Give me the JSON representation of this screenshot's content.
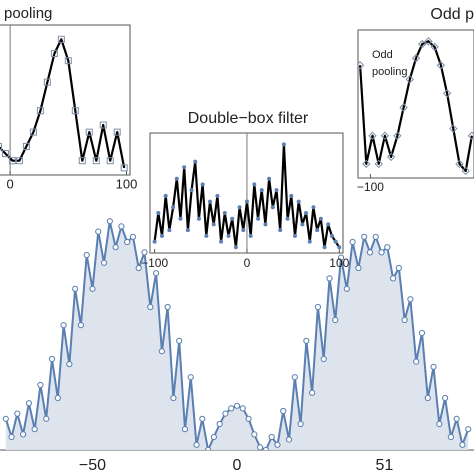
{
  "chart_data": [
    {
      "type": "area",
      "color": "#5a7fb0",
      "fill_color": "#dde4ee",
      "marker": "circle",
      "xlim": [
        -82,
        82
      ],
      "ylim": [
        0,
        1
      ],
      "xticks": [
        {
          "value": -50,
          "label": "−50"
        },
        0,
        51
      ],
      "x": [
        -80,
        -78,
        -76,
        -74,
        -72,
        -70,
        -68,
        -66,
        -64,
        -62,
        -60,
        -58,
        -56,
        -54,
        -52,
        -50,
        -48,
        -46,
        -44,
        -42,
        -40,
        -38,
        -36,
        -34,
        -32,
        -30,
        -28,
        -26,
        -24,
        -22,
        -20,
        -18,
        -16,
        -14,
        -12,
        -10,
        -8,
        -6,
        -4,
        -2,
        0,
        2,
        4,
        6,
        8,
        10,
        12,
        14,
        16,
        18,
        20,
        22,
        24,
        26,
        28,
        30,
        32,
        34,
        36,
        38,
        40,
        42,
        44,
        46,
        48,
        50,
        52,
        54,
        56,
        58,
        60,
        62,
        64,
        66,
        68,
        70,
        72,
        74,
        76,
        78,
        80
      ],
      "values": [
        0.12,
        0.05,
        0.14,
        0.06,
        0.18,
        0.08,
        0.25,
        0.12,
        0.35,
        0.2,
        0.48,
        0.33,
        0.62,
        0.48,
        0.75,
        0.62,
        0.84,
        0.72,
        0.88,
        0.78,
        0.86,
        0.8,
        0.82,
        0.7,
        0.76,
        0.55,
        0.68,
        0.38,
        0.55,
        0.2,
        0.42,
        0.08,
        0.28,
        0.02,
        0.12,
        0.0,
        0.05,
        0.1,
        0.14,
        0.16,
        0.17,
        0.16,
        0.12,
        0.06,
        0.01,
        0.0,
        0.05,
        0.02,
        0.15,
        0.04,
        0.28,
        0.1,
        0.42,
        0.22,
        0.55,
        0.35,
        0.66,
        0.5,
        0.74,
        0.62,
        0.8,
        0.7,
        0.82,
        0.76,
        0.82,
        0.76,
        0.78,
        0.66,
        0.7,
        0.5,
        0.58,
        0.34,
        0.45,
        0.2,
        0.32,
        0.1,
        0.2,
        0.05,
        0.12,
        0.02,
        0.08
      ]
    },
    {
      "type": "line",
      "title": "pooling",
      "color": "#000000",
      "marker": "square",
      "marker_color": "#7d8fa8",
      "xlim": [
        -13,
        103
      ],
      "ylim": [
        0,
        1.05
      ],
      "xticks": [
        0,
        100
      ],
      "x": [
        -10,
        -4,
        2,
        8,
        14,
        20,
        26,
        32,
        38,
        44,
        50,
        56,
        62,
        68,
        74,
        80,
        86,
        92,
        98
      ],
      "values": [
        0.2,
        0.15,
        0.1,
        0.1,
        0.2,
        0.3,
        0.45,
        0.65,
        0.85,
        0.95,
        0.8,
        0.45,
        0.1,
        0.3,
        0.1,
        0.35,
        0.1,
        0.3,
        0.05
      ]
    },
    {
      "type": "line",
      "title": "Double−box filter",
      "color": "#000000",
      "marker": "dot",
      "marker_color": "#5a7fb0",
      "xlim": [
        -105,
        104
      ],
      "ylim": [
        0,
        1.05
      ],
      "xticks": [
        {
          "value": -100,
          "label": "−100"
        },
        0,
        100
      ],
      "x": [
        -100,
        -96,
        -92,
        -88,
        -84,
        -80,
        -76,
        -72,
        -68,
        -64,
        -60,
        -56,
        -52,
        -48,
        -44,
        -40,
        -36,
        -32,
        -28,
        -24,
        -20,
        -16,
        -12,
        -8,
        -4,
        0,
        4,
        8,
        12,
        16,
        20,
        24,
        28,
        32,
        36,
        40,
        44,
        48,
        52,
        56,
        60,
        64,
        68,
        72,
        76,
        80,
        84,
        88,
        92,
        96,
        100
      ],
      "values": [
        0.1,
        0.35,
        0.15,
        0.5,
        0.2,
        0.4,
        0.65,
        0.3,
        0.75,
        0.2,
        0.55,
        0.8,
        0.3,
        0.6,
        0.15,
        0.45,
        0.25,
        0.5,
        0.1,
        0.35,
        0.15,
        0.3,
        0.05,
        0.4,
        0.2,
        0.45,
        0.15,
        0.6,
        0.3,
        0.55,
        0.25,
        0.65,
        0.4,
        0.55,
        0.2,
        0.95,
        0.3,
        0.5,
        0.15,
        0.45,
        0.25,
        0.35,
        0.1,
        0.4,
        0.2,
        0.3,
        0.05,
        0.25,
        0.15,
        0.1,
        0.05
      ]
    },
    {
      "type": "line",
      "title": "Odd p",
      "annotations": [
        "Odd",
        "pooling"
      ],
      "color": "#000000",
      "marker": "diamond",
      "marker_color": "#7d8fa8",
      "xlim": [
        -112,
        0
      ],
      "ylim": [
        0,
        1.05
      ],
      "xticks": [
        {
          "value": -100,
          "label": "−100"
        }
      ],
      "x": [
        -110,
        -104,
        -98,
        -92,
        -86,
        -80,
        -74,
        -68,
        -62,
        -56,
        -50,
        -44,
        -38,
        -32,
        -26,
        -20,
        -14,
        -8,
        -2
      ],
      "values": [
        0.8,
        0.1,
        0.3,
        0.1,
        0.3,
        0.15,
        0.3,
        0.5,
        0.7,
        0.85,
        0.95,
        0.97,
        0.93,
        0.8,
        0.6,
        0.35,
        0.1,
        0.05,
        0.3
      ]
    }
  ]
}
